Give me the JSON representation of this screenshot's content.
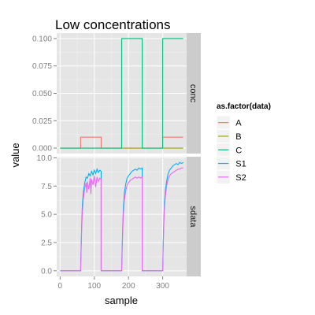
{
  "chart_data": {
    "type": "line",
    "title": "Low concentrations",
    "xlabel": "sample",
    "ylabel": "value",
    "xlim": [
      -10,
      370
    ],
    "x_ticks": [
      0,
      100,
      200,
      300
    ],
    "grid": true,
    "legend": {
      "title": "as.factor(data)",
      "position": "right",
      "entries": [
        {
          "name": "A",
          "color": "#F8766D"
        },
        {
          "name": "B",
          "color": "#A3A500"
        },
        {
          "name": "C",
          "color": "#00BF7D"
        },
        {
          "name": "S1",
          "color": "#00B0F6"
        },
        {
          "name": "S2",
          "color": "#E76BF3"
        }
      ]
    },
    "facets": [
      {
        "strip": "conc",
        "ylim": [
          -0.005,
          0.105
        ],
        "y_ticks": [
          0.0,
          0.025,
          0.05,
          0.075,
          0.1
        ],
        "y_tick_labels": [
          "0.000",
          "0.025",
          "0.050",
          "0.075",
          "0.100"
        ],
        "series": [
          {
            "name": "A",
            "color": "#F8766D",
            "points": [
              [
                0,
                0
              ],
              [
                60,
                0
              ],
              [
                60,
                0.01
              ],
              [
                120,
                0.01
              ],
              [
                120,
                0
              ],
              [
                300,
                0
              ],
              [
                300,
                0.01
              ],
              [
                360,
                0.01
              ]
            ]
          },
          {
            "name": "B",
            "color": "#A3A500",
            "points": [
              [
                0,
                0
              ],
              [
                360,
                0
              ]
            ]
          },
          {
            "name": "C",
            "color": "#00BF7D",
            "points": [
              [
                0,
                0
              ],
              [
                180,
                0
              ],
              [
                180,
                0.1
              ],
              [
                240,
                0.1
              ],
              [
                240,
                0
              ],
              [
                300,
                0
              ],
              [
                300,
                0.1
              ],
              [
                360,
                0.1
              ]
            ]
          }
        ]
      },
      {
        "strip": "sdata",
        "ylim": [
          -0.5,
          10.1
        ],
        "y_ticks": [
          0.0,
          2.5,
          5.0,
          7.5,
          10.0
        ],
        "y_tick_labels": [
          "0.0",
          "2.5",
          "5.0",
          "7.5",
          "10.0"
        ],
        "series": [
          {
            "name": "S1",
            "color": "#00B0F6",
            "points": [
              [
                0,
                0
              ],
              [
                60,
                0
              ],
              [
                61,
                1.5
              ],
              [
                63,
                4.0
              ],
              [
                65,
                5.8
              ],
              [
                68,
                7.0
              ],
              [
                72,
                7.8
              ],
              [
                76,
                8.3
              ],
              [
                80,
                8.2
              ],
              [
                84,
                8.6
              ],
              [
                88,
                8.4
              ],
              [
                92,
                8.8
              ],
              [
                96,
                8.5
              ],
              [
                100,
                8.9
              ],
              [
                104,
                8.6
              ],
              [
                108,
                9.0
              ],
              [
                112,
                8.7
              ],
              [
                116,
                8.9
              ],
              [
                120,
                8.8
              ],
              [
                120,
                0
              ],
              [
                180,
                0
              ],
              [
                181,
                1.5
              ],
              [
                183,
                3.8
              ],
              [
                185,
                5.6
              ],
              [
                188,
                6.9
              ],
              [
                192,
                7.7
              ],
              [
                196,
                8.2
              ],
              [
                200,
                8.4
              ],
              [
                205,
                8.6
              ],
              [
                210,
                8.8
              ],
              [
                215,
                8.9
              ],
              [
                220,
                9.0
              ],
              [
                225,
                8.9
              ],
              [
                230,
                9.1
              ],
              [
                235,
                9.0
              ],
              [
                240,
                9.1
              ],
              [
                240,
                0
              ],
              [
                300,
                0
              ],
              [
                301,
                1.8
              ],
              [
                303,
                4.2
              ],
              [
                305,
                6.0
              ],
              [
                308,
                7.2
              ],
              [
                312,
                8.0
              ],
              [
                316,
                8.6
              ],
              [
                320,
                8.9
              ],
              [
                325,
                9.1
              ],
              [
                330,
                9.3
              ],
              [
                335,
                9.4
              ],
              [
                340,
                9.5
              ],
              [
                345,
                9.4
              ],
              [
                350,
                9.6
              ],
              [
                355,
                9.5
              ],
              [
                360,
                9.6
              ]
            ]
          },
          {
            "name": "S2",
            "color": "#E76BF3",
            "points": [
              [
                0,
                0
              ],
              [
                60,
                0
              ],
              [
                61,
                1.3
              ],
              [
                63,
                3.6
              ],
              [
                65,
                5.2
              ],
              [
                68,
                6.4
              ],
              [
                72,
                7.3
              ],
              [
                76,
                7.8
              ],
              [
                78,
                6.9
              ],
              [
                80,
                7.9
              ],
              [
                84,
                7.2
              ],
              [
                88,
                8.2
              ],
              [
                90,
                6.8
              ],
              [
                92,
                8.1
              ],
              [
                96,
                7.6
              ],
              [
                100,
                8.4
              ],
              [
                104,
                7.4
              ],
              [
                108,
                8.3
              ],
              [
                112,
                7.9
              ],
              [
                116,
                8.2
              ],
              [
                120,
                8.1
              ],
              [
                120,
                0
              ],
              [
                180,
                0
              ],
              [
                181,
                1.3
              ],
              [
                183,
                3.4
              ],
              [
                185,
                5.0
              ],
              [
                188,
                6.3
              ],
              [
                192,
                7.1
              ],
              [
                196,
                7.6
              ],
              [
                200,
                7.8
              ],
              [
                205,
                8.0
              ],
              [
                210,
                8.1
              ],
              [
                215,
                8.2
              ],
              [
                220,
                8.3
              ],
              [
                225,
                8.2
              ],
              [
                230,
                8.3
              ],
              [
                235,
                8.2
              ],
              [
                240,
                8.3
              ],
              [
                240,
                0
              ],
              [
                300,
                0
              ],
              [
                301,
                1.5
              ],
              [
                303,
                3.8
              ],
              [
                305,
                5.5
              ],
              [
                308,
                6.7
              ],
              [
                312,
                7.6
              ],
              [
                316,
                8.1
              ],
              [
                320,
                8.4
              ],
              [
                325,
                8.6
              ],
              [
                330,
                8.7
              ],
              [
                335,
                8.8
              ],
              [
                340,
                8.9
              ],
              [
                345,
                9.0
              ],
              [
                350,
                9.0
              ],
              [
                355,
                9.1
              ],
              [
                360,
                9.1
              ]
            ]
          }
        ]
      }
    ]
  }
}
